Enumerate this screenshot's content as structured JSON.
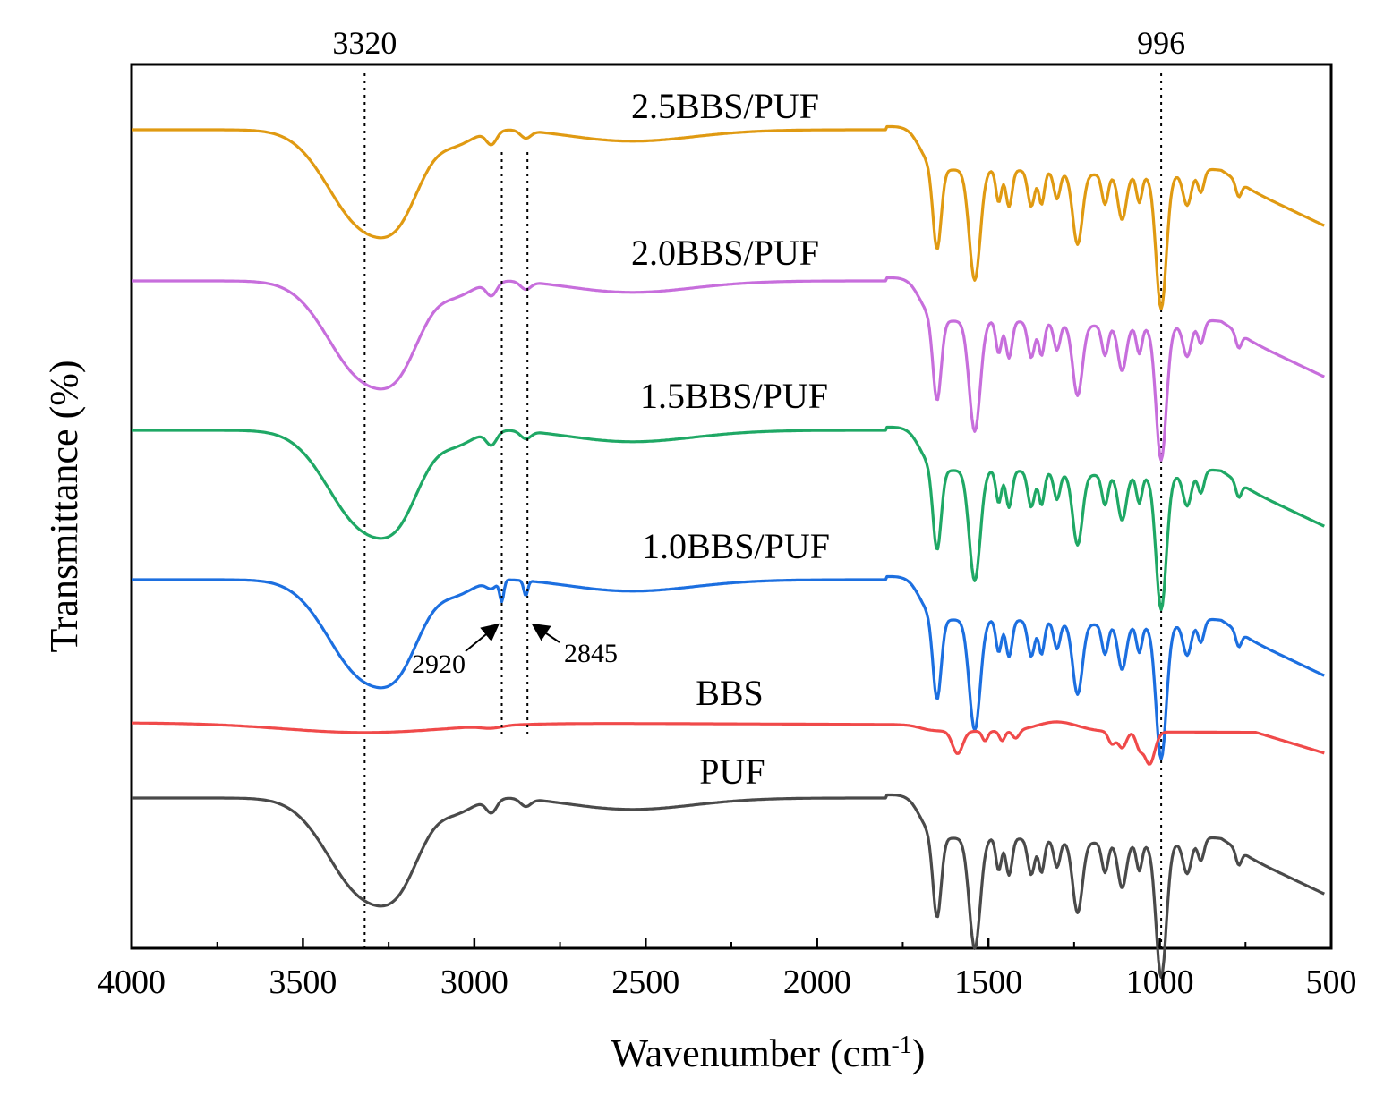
{
  "chart_data": {
    "type": "line",
    "title": "",
    "xlabel": "Wavenumber (cm",
    "xlabel_sup": "-1",
    "xlabel_end": ")",
    "ylabel": "Transmittance (%)",
    "xlim": [
      4000,
      500
    ],
    "x_reversed": true,
    "y_ticks_shown": false,
    "x_ticks": [
      4000,
      3500,
      3000,
      2500,
      2000,
      1500,
      1000,
      500
    ],
    "x_tick_labels": [
      "4000",
      "3500",
      "3000",
      "2500",
      "2000",
      "1500",
      "1000",
      "500"
    ],
    "reference_lines": [
      {
        "x": 3320,
        "label": "3320"
      },
      {
        "x": 996,
        "label": "996"
      }
    ],
    "peak_annotations": [
      {
        "x": 2920,
        "label": "2920",
        "series": "1.0BBS/PUF"
      },
      {
        "x": 2845,
        "label": "2845",
        "series": "1.0BBS/PUF"
      }
    ],
    "series": [
      {
        "name": "2.5BBS/PUF",
        "color": "#E09A12",
        "offset": 5
      },
      {
        "name": "2.0BBS/PUF",
        "color": "#C76EDC",
        "offset": 4
      },
      {
        "name": "1.5BBS/PUF",
        "color": "#1FA865",
        "offset": 3
      },
      {
        "name": "1.0BBS/PUF",
        "color": "#1C6FE0",
        "offset": 2
      },
      {
        "name": "BBS",
        "color": "#F04A4A",
        "offset": 1
      },
      {
        "name": "PUF",
        "color": "#4A4A4A",
        "offset": 0
      }
    ],
    "note": "Spectra are vertically offset; absolute transmittance values not shown."
  }
}
